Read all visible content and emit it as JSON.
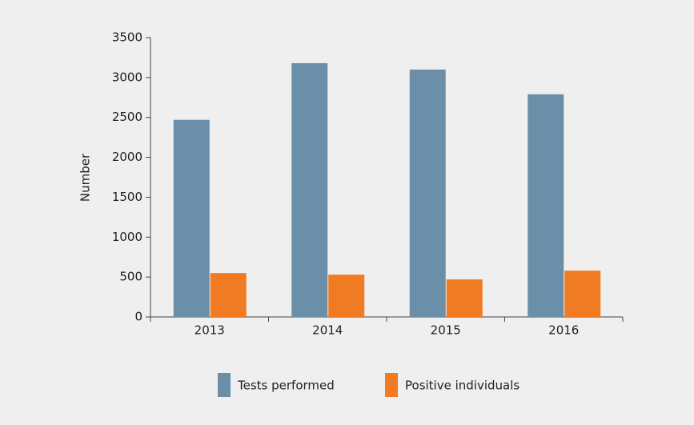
{
  "chart_data": {
    "type": "bar",
    "y_label": "Number",
    "categories": [
      "2013",
      "2014",
      "2015",
      "2016"
    ],
    "series": [
      {
        "name": "Tests performed",
        "color": "#6b8fa8",
        "values": [
          2470,
          3180,
          3100,
          2790
        ]
      },
      {
        "name": "Positive individuals",
        "color": "#f07b22",
        "values": [
          550,
          530,
          470,
          580
        ]
      }
    ],
    "ylim": [
      0,
      3500
    ],
    "yticks": [
      0,
      500,
      1000,
      1500,
      2000,
      2500,
      3000,
      3500
    ],
    "grid": false,
    "legend": "bottom"
  }
}
